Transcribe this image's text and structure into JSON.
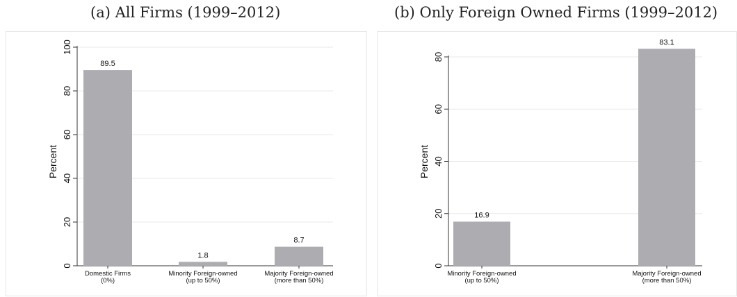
{
  "titles": {
    "a": "(a) All Firms (1999–2012)",
    "b": "(b) Only Foreign Owned Firms (1999–2012)"
  },
  "colors": {
    "bar": "#adadb1",
    "grid": "#e8e8e8",
    "axis": "#333333"
  },
  "chart_data": [
    {
      "type": "bar",
      "title": "(a) All Firms (1999–2012)",
      "categories": [
        [
          "Domestic Firms",
          "(0%)"
        ],
        [
          "Minority Foreign-owned",
          "(up to 50%)"
        ],
        [
          "Majority Foreign-owned",
          "(more than 50%)"
        ]
      ],
      "values": [
        89.5,
        1.8,
        8.7
      ],
      "data_labels": [
        "89.5",
        "1.8",
        "8.7"
      ],
      "ylabel": "Percent",
      "ylim": [
        0,
        100
      ],
      "yticks": [
        0,
        20,
        40,
        60,
        80,
        100
      ],
      "grid": true
    },
    {
      "type": "bar",
      "title": "(b) Only Foreign Owned Firms (1999–2012)",
      "categories": [
        [
          "Minority Foreign-owned",
          "(up to 50%)"
        ],
        [
          "Majority Foreign-owned",
          "(more than 50%)"
        ]
      ],
      "values": [
        16.9,
        83.1
      ],
      "data_labels": [
        "16.9",
        "83.1"
      ],
      "ylabel": "Percent",
      "ylim": [
        0,
        85
      ],
      "yticks": [
        0,
        20,
        40,
        60,
        80
      ],
      "grid": true
    }
  ]
}
